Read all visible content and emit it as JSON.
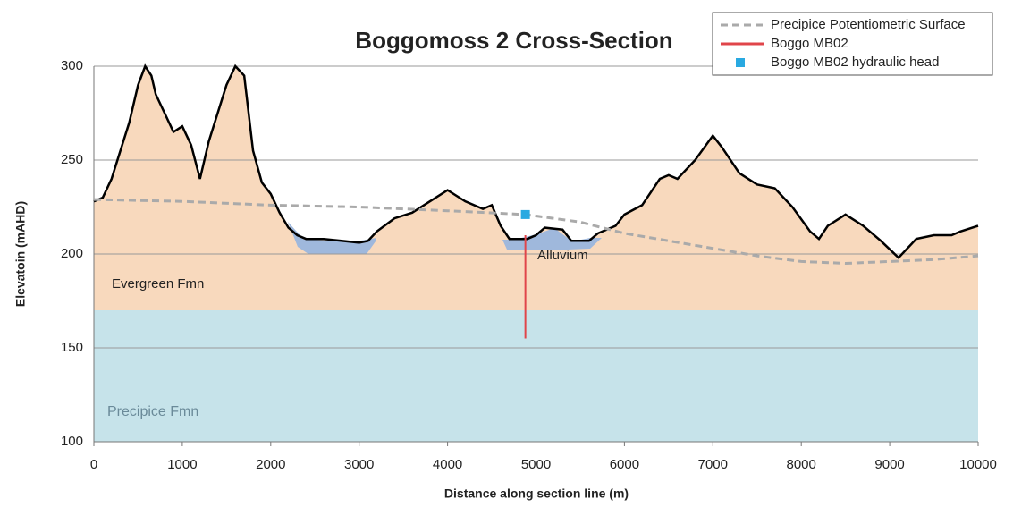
{
  "chart_data": {
    "type": "cross-section",
    "title": "Boggomoss 2 Cross-Section",
    "x_label": "Distance along section line (m)",
    "y_label": "Elevatoin (mAHD)",
    "xlim": [
      0,
      10000
    ],
    "xticks": [
      0,
      1000,
      2000,
      3000,
      4000,
      5000,
      6000,
      7000,
      8000,
      9000,
      10000
    ],
    "ylim": [
      100,
      300
    ],
    "yticks": [
      100,
      150,
      200,
      250,
      300
    ],
    "grid": true,
    "terrain": {
      "color": "#000000",
      "x": [
        0,
        100,
        200,
        300,
        400,
        500,
        580,
        650,
        700,
        800,
        900,
        1000,
        1100,
        1200,
        1300,
        1400,
        1500,
        1600,
        1700,
        1800,
        1900,
        2000,
        2100,
        2200,
        2300,
        2400,
        2600,
        2800,
        3000,
        3100,
        3200,
        3400,
        3600,
        3800,
        4000,
        4200,
        4400,
        4500,
        4600,
        4700,
        4900,
        5000,
        5100,
        5300,
        5400,
        5600,
        5700,
        5900,
        6000,
        6200,
        6400,
        6500,
        6600,
        6800,
        7000,
        7100,
        7300,
        7500,
        7700,
        7900,
        8100,
        8200,
        8300,
        8500,
        8700,
        8900,
        9100,
        9300,
        9500,
        9700,
        9800,
        10000
      ],
      "values": [
        228,
        230,
        240,
        255,
        270,
        290,
        300,
        295,
        285,
        275,
        265,
        268,
        258,
        240,
        260,
        275,
        290,
        300,
        295,
        255,
        238,
        232,
        222,
        214,
        210,
        208,
        208,
        207,
        206,
        207,
        212,
        219,
        222,
        228,
        234,
        228,
        224,
        226,
        215,
        208,
        208,
        210,
        214,
        213,
        207,
        207,
        211,
        215,
        221,
        226,
        240,
        242,
        240,
        250,
        263,
        257,
        243,
        237,
        235,
        225,
        212,
        208,
        215,
        221,
        215,
        207,
        198,
        208,
        210,
        210,
        212,
        215
      ]
    },
    "formations": [
      {
        "name": "Evergreen Fmn",
        "color": "#f8d9bd",
        "bottom": 170
      },
      {
        "name": "Precipice Fmn",
        "color": "#c6e3ea",
        "top": 170,
        "bottom": 100
      }
    ],
    "alluvium": {
      "name": "Alluvium",
      "color": "#9fb8dc"
    },
    "series": [
      {
        "name": "Precipice Potentiometric Surface",
        "color": "#aaaaaa",
        "style": "dashed",
        "x": [
          0,
          1000,
          2000,
          3000,
          4000,
          4880,
          5500,
          6000,
          6500,
          7000,
          7500,
          8000,
          8500,
          9000,
          9500,
          10000
        ],
        "values": [
          229,
          228,
          226,
          225,
          223,
          221,
          217,
          211,
          207,
          203,
          199,
          196,
          195,
          196,
          197,
          199
        ]
      },
      {
        "name": "Boggo MB02",
        "color": "#e0454a",
        "style": "line",
        "x": [
          4880,
          4880
        ],
        "values": [
          210,
          155
        ]
      },
      {
        "name": "Boggo MB02 hydraulic head",
        "color": "#29a9e1",
        "style": "square",
        "x": [
          4880
        ],
        "values": [
          221
        ]
      }
    ],
    "legend": "top-right"
  }
}
